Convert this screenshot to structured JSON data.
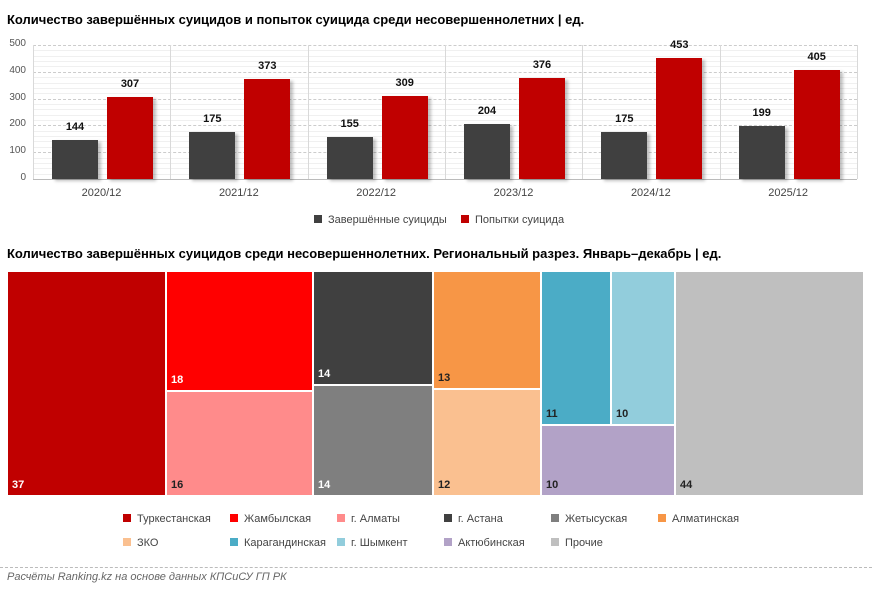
{
  "chart_data": [
    {
      "type": "bar",
      "title": "Количество завершённых суицидов и попыток суицида среди несовершеннолетних | ед.",
      "categories": [
        "2020/12",
        "2021/12",
        "2022/12",
        "2023/12",
        "2024/12",
        "2025/12"
      ],
      "series": [
        {
          "name": "Завершённые суициды",
          "values": [
            144,
            175,
            155,
            204,
            175,
            199
          ],
          "color": "#404040"
        },
        {
          "name": "Попытки суицида",
          "values": [
            307,
            373,
            309,
            376,
            453,
            405
          ],
          "color": "#C00000"
        }
      ],
      "ylim": [
        0,
        500
      ],
      "yticks": [
        "0",
        "100",
        "200",
        "300",
        "400",
        "500"
      ],
      "grid": true,
      "legend": "bottom"
    },
    {
      "type": "treemap",
      "title": "Количество завершённых суицидов среди несовершеннолетних. Региональный разрез. Январь–декабрь | ед.",
      "items": [
        {
          "name": "Туркестанская",
          "value": 37,
          "color": "#C00000"
        },
        {
          "name": "Жамбылская",
          "value": 18,
          "color": "#FF0000"
        },
        {
          "name": "г. Алматы",
          "value": 16,
          "color": "#FF8B8B"
        },
        {
          "name": "г. Астана",
          "value": 14,
          "color": "#404040"
        },
        {
          "name": "Жетысуская",
          "value": 14,
          "color": "#7F7F7F"
        },
        {
          "name": "Алматинская",
          "value": 13,
          "color": "#F79646"
        },
        {
          "name": "ЗКО",
          "value": 12,
          "color": "#FAC090"
        },
        {
          "name": "Карагандинская",
          "value": 11,
          "color": "#4BACC6"
        },
        {
          "name": "г. Шымкент",
          "value": 10,
          "color": "#92CDDC"
        },
        {
          "name": "Актюбинская",
          "value": 10,
          "color": "#B2A2C7"
        },
        {
          "name": "Прочие",
          "value": 44,
          "color": "#BFBFBF"
        }
      ],
      "legend": "bottom"
    }
  ],
  "footer": "Расчёты Ranking.kz на основе данных КПСиСУ ГП РК"
}
